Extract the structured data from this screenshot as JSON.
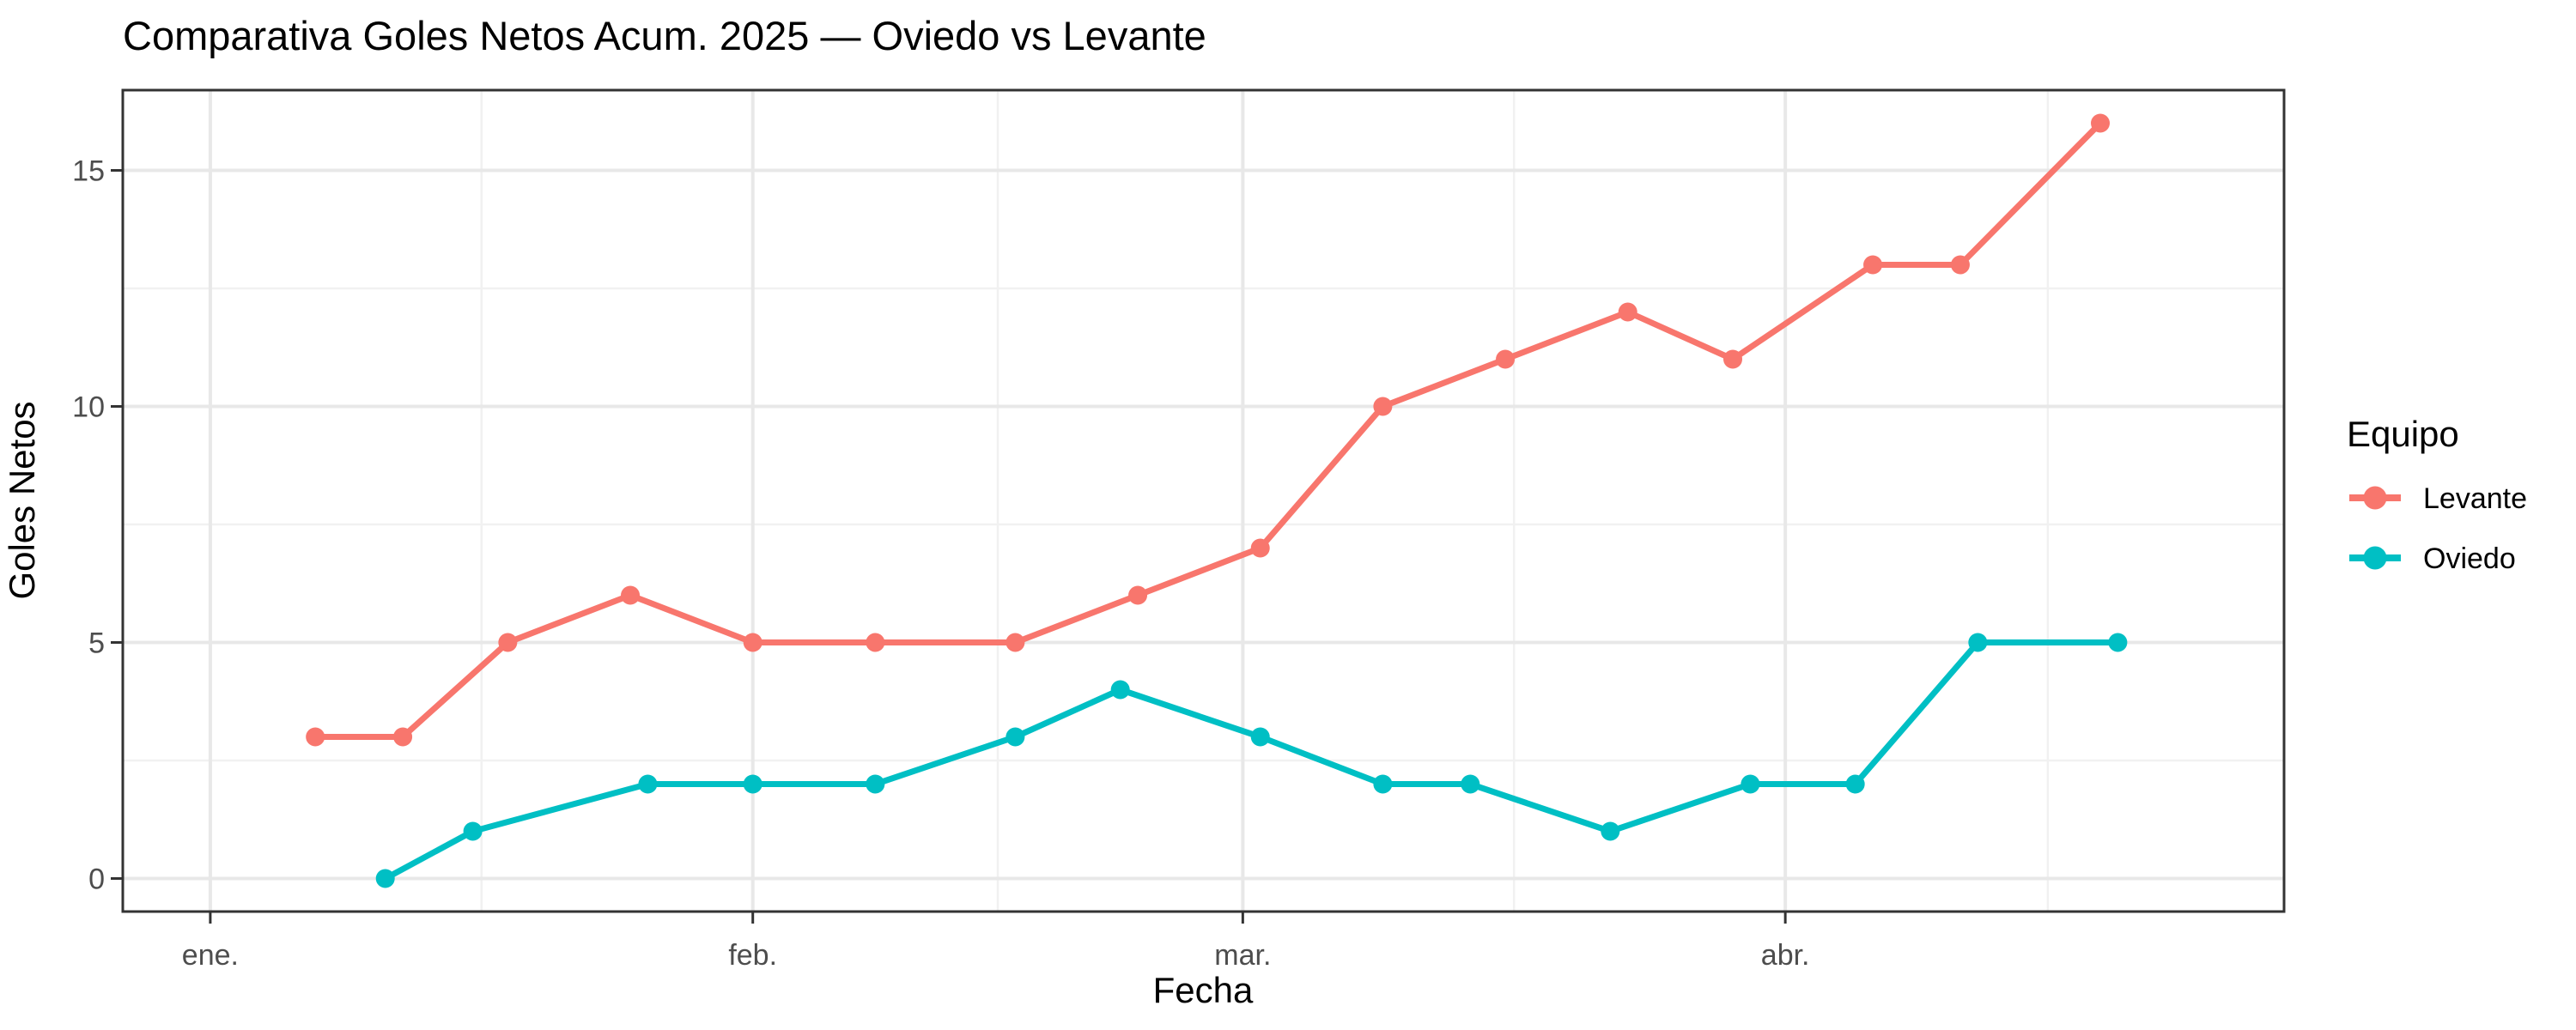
{
  "title": "Comparativa Goles Netos Acum. 2025 — Oviedo vs Levante",
  "axes": {
    "x_label": "Fecha",
    "y_label": "Goles Netos"
  },
  "legend": {
    "title": "Equipo",
    "items": [
      {
        "label": "Levante",
        "color": "#F8766D"
      },
      {
        "label": "Oviedo",
        "color": "#00BFC4"
      }
    ]
  },
  "colors": {
    "levante": "#F8766D",
    "oviedo": "#00BFC4",
    "grid_major": "#E8E8E8",
    "grid_minor": "#F1F1F1",
    "panel_border": "#333333",
    "tick_mark": "#333333",
    "tick_label": "#4D4D4D",
    "text": "#000000",
    "background": "#FFFFFF"
  },
  "chart_data": {
    "type": "line",
    "title": "Comparativa Goles Netos Acum. 2025 — Oviedo vs Levante",
    "xlabel": "Fecha",
    "ylabel": "Goles Netos",
    "grid": true,
    "legend_position": "right",
    "x_axis": {
      "unit": "day_of_year_2025",
      "lim": [
        -4,
        119.5
      ],
      "major_ticks": [
        {
          "day": 1,
          "label": "ene."
        },
        {
          "day": 32,
          "label": "feb."
        },
        {
          "day": 60,
          "label": "mar."
        },
        {
          "day": 91,
          "label": "abr."
        }
      ],
      "minor_ticks": [
        16.5,
        46,
        75.5,
        106
      ]
    },
    "y_axis": {
      "lim": [
        -0.7,
        16.7
      ],
      "major_ticks": [
        0,
        5,
        10,
        15
      ],
      "minor_ticks": [
        2.5,
        7.5,
        12.5
      ]
    },
    "series": [
      {
        "name": "Levante",
        "color": "#F8766D",
        "points": [
          [
            7,
            3
          ],
          [
            12,
            3
          ],
          [
            18,
            5
          ],
          [
            25,
            6
          ],
          [
            32,
            5
          ],
          [
            39,
            5
          ],
          [
            47,
            5
          ],
          [
            54,
            6
          ],
          [
            61,
            7
          ],
          [
            68,
            10
          ],
          [
            75,
            11
          ],
          [
            82,
            12
          ],
          [
            88,
            11
          ],
          [
            96,
            13
          ],
          [
            101,
            13
          ],
          [
            109,
            16
          ]
        ]
      },
      {
        "name": "Oviedo",
        "color": "#00BFC4",
        "points": [
          [
            11,
            0
          ],
          [
            16,
            1
          ],
          [
            26,
            2
          ],
          [
            32,
            2
          ],
          [
            39,
            2
          ],
          [
            47,
            3
          ],
          [
            53,
            4
          ],
          [
            61,
            3
          ],
          [
            68,
            2
          ],
          [
            73,
            2
          ],
          [
            81,
            1
          ],
          [
            89,
            2
          ],
          [
            95,
            2
          ],
          [
            102,
            5
          ],
          [
            110,
            5
          ]
        ]
      }
    ]
  }
}
